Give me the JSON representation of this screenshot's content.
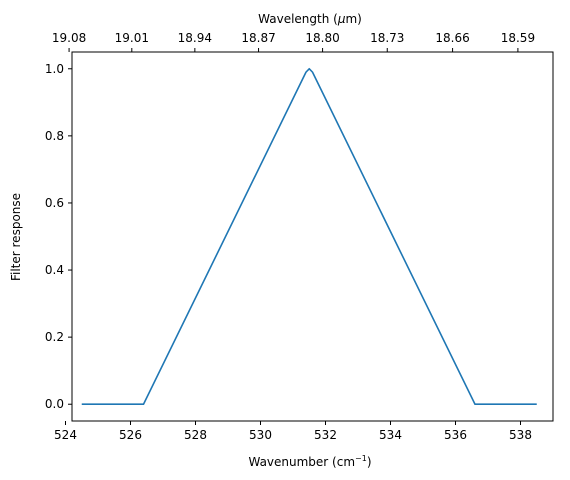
{
  "chart_data": {
    "type": "line",
    "xlabel": "Wavenumber (cm",
    "xlabel_sup": "−1",
    "xlabel_close": ")",
    "ylabel": "Filter response",
    "top_xlabel": "Wavelength (",
    "top_xlabel_mu": "μ",
    "top_xlabel_end": "m)",
    "xlim": [
      524.2,
      539.0
    ],
    "ylim": [
      -0.05,
      1.05
    ],
    "x_ticks": [
      524,
      526,
      528,
      530,
      532,
      534,
      536,
      538
    ],
    "x_tick_labels": [
      "524",
      "526",
      "528",
      "530",
      "532",
      "534",
      "536",
      "538"
    ],
    "y_ticks": [
      0.0,
      0.2,
      0.4,
      0.6,
      0.8,
      1.0
    ],
    "y_tick_labels": [
      "0.0",
      "0.2",
      "0.4",
      "0.6",
      "0.8",
      "1.0"
    ],
    "top_ticks": [
      {
        "wavenumber": 524.11,
        "label": "19.08"
      },
      {
        "wavenumber": 526.04,
        "label": "19.01"
      },
      {
        "wavenumber": 527.98,
        "label": "18.94"
      },
      {
        "wavenumber": 529.94,
        "label": "18.87"
      },
      {
        "wavenumber": 531.91,
        "label": "18.80"
      },
      {
        "wavenumber": 533.9,
        "label": "18.73"
      },
      {
        "wavenumber": 535.91,
        "label": "18.66"
      },
      {
        "wavenumber": 537.92,
        "label": "18.59"
      }
    ],
    "series": [
      {
        "color": "#1f77b4",
        "x": [
          524.5,
          526.4,
          531.4,
          531.5,
          531.6,
          536.6,
          538.5
        ],
        "y": [
          0.0,
          0.0,
          0.99,
          1.0,
          0.99,
          0.0,
          0.0
        ]
      }
    ],
    "grid": false
  }
}
